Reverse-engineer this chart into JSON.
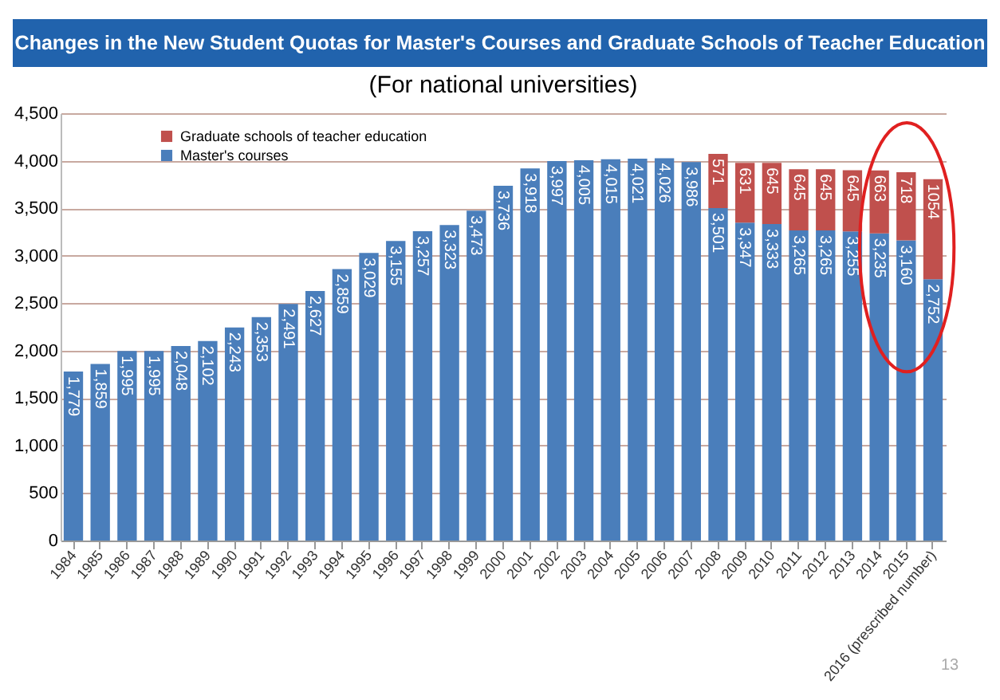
{
  "chart_data": {
    "type": "bar",
    "title": "Changes in the New Student Quotas for Master's Courses and Graduate Schools of Teacher Education",
    "subtitle": "(For national universities)",
    "categories": [
      "1984",
      "1985",
      "1986",
      "1987",
      "1988",
      "1989",
      "1990",
      "1991",
      "1992",
      "1993",
      "1994",
      "1995",
      "1996",
      "1997",
      "1998",
      "1999",
      "2000",
      "2001",
      "2002",
      "2003",
      "2004",
      "2005",
      "2006",
      "2007",
      "2008",
      "2009",
      "2010",
      "2011",
      "2012",
      "2013",
      "2014",
      "2015",
      "2016 (prescribed number)"
    ],
    "stacked": true,
    "series": [
      {
        "name": "Master's courses",
        "color": "#4a7ebb",
        "values": [
          1779,
          1859,
          1995,
          1995,
          2048,
          2102,
          2243,
          2353,
          2491,
          2627,
          2859,
          3029,
          3155,
          3257,
          3323,
          3473,
          3736,
          3918,
          3997,
          4005,
          4015,
          4021,
          4026,
          3986,
          3501,
          3347,
          3333,
          3265,
          3265,
          3255,
          3235,
          3160,
          2752
        ],
        "value_labels": [
          "1,779",
          "1,859",
          "1,995",
          "1,995",
          "2,048",
          "2,102",
          "2,243",
          "2,353",
          "2,491",
          "2,627",
          "2,859",
          "3,029",
          "3,155",
          "3,257",
          "3,323",
          "3,473",
          "3,736",
          "3,918",
          "3,997",
          "4,005",
          "4,015",
          "4,021",
          "4,026",
          "3,986",
          "3,501",
          "3,347",
          "3,333",
          "3,265",
          "3,265",
          "3,255",
          "3,235",
          "3,160",
          "2,752"
        ]
      },
      {
        "name": "Graduate schools of teacher education",
        "color": "#c0504d",
        "values": [
          null,
          null,
          null,
          null,
          null,
          null,
          null,
          null,
          null,
          null,
          null,
          null,
          null,
          null,
          null,
          null,
          null,
          null,
          null,
          null,
          null,
          null,
          null,
          null,
          571,
          631,
          645,
          645,
          645,
          645,
          663,
          718,
          1054
        ],
        "value_labels": [
          null,
          null,
          null,
          null,
          null,
          null,
          null,
          null,
          null,
          null,
          null,
          null,
          null,
          null,
          null,
          null,
          null,
          null,
          null,
          null,
          null,
          null,
          null,
          null,
          "571",
          "631",
          "645",
          "645",
          "645",
          "645",
          "663",
          "718",
          "1054"
        ]
      }
    ],
    "ylim": [
      0,
      4500
    ],
    "yticks": [
      {
        "value": 0,
        "label": "0"
      },
      {
        "value": 500,
        "label": "500"
      },
      {
        "value": 1000,
        "label": "1,000"
      },
      {
        "value": 1500,
        "label": "1,500"
      },
      {
        "value": 2000,
        "label": "2,000"
      },
      {
        "value": 2500,
        "label": "2,500"
      },
      {
        "value": 3000,
        "label": "3,000"
      },
      {
        "value": 3500,
        "label": "3,500"
      },
      {
        "value": 4000,
        "label": "4,000"
      },
      {
        "value": 4500,
        "label": "4,500"
      }
    ],
    "grid": "y",
    "legend": "top left",
    "annotations": [
      "13"
    ]
  }
}
